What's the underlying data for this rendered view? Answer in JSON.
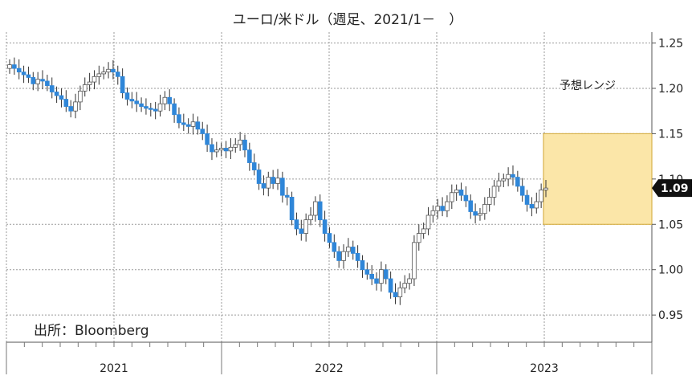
{
  "chart_data": {
    "type": "candlestick",
    "title": "ユーロ/米ドル（週足、2021/1－　）",
    "source_note": "出所：Bloomberg",
    "range_label": "予想レンジ",
    "forecast_range": [
      1.05,
      1.15
    ],
    "current_value": 1.09,
    "current_value_label": "1.09",
    "ylim": [
      0.92,
      1.262
    ],
    "yticks": [
      0.95,
      1.0,
      1.05,
      1.1,
      1.15,
      1.2,
      1.25
    ],
    "ytick_labels": [
      "0.95",
      "1.00",
      "1.05",
      "1.10",
      "1.15",
      "1.20",
      "1.25"
    ],
    "xlabels": [
      "2021",
      "2022",
      "2023"
    ],
    "colors": {
      "up": "#ffffff",
      "down": "#2f86d8",
      "wick": "#333333",
      "forecast_fill": "#fbe6a8",
      "forecast_stroke": "#d8b24a",
      "badge": "#111111"
    },
    "grid": true,
    "closes": [
      1.226,
      1.222,
      1.218,
      1.215,
      1.212,
      1.205,
      1.21,
      1.208,
      1.203,
      1.196,
      1.192,
      1.188,
      1.18,
      1.175,
      1.185,
      1.197,
      1.204,
      1.207,
      1.213,
      1.216,
      1.218,
      1.221,
      1.218,
      1.213,
      1.195,
      1.188,
      1.186,
      1.183,
      1.18,
      1.178,
      1.177,
      1.175,
      1.183,
      1.19,
      1.183,
      1.171,
      1.162,
      1.16,
      1.158,
      1.163,
      1.155,
      1.15,
      1.138,
      1.13,
      1.132,
      1.134,
      1.131,
      1.135,
      1.138,
      1.143,
      1.132,
      1.118,
      1.11,
      1.095,
      1.09,
      1.102,
      1.095,
      1.101,
      1.082,
      1.08,
      1.055,
      1.045,
      1.04,
      1.055,
      1.06,
      1.075,
      1.055,
      1.04,
      1.03,
      1.02,
      1.01,
      1.02,
      1.025,
      1.018,
      1.01,
      1.0,
      0.995,
      0.99,
      0.985,
      1.0,
      0.99,
      0.975,
      0.97,
      0.98,
      0.985,
      0.99,
      1.03,
      1.04,
      1.045,
      1.06,
      1.065,
      1.07,
      1.065,
      1.075,
      1.085,
      1.088,
      1.082,
      1.076,
      1.064,
      1.06,
      1.062,
      1.072,
      1.08,
      1.092,
      1.098,
      1.1,
      1.105,
      1.102,
      1.092,
      1.082,
      1.072,
      1.068,
      1.075,
      1.088,
      1.09
    ]
  }
}
